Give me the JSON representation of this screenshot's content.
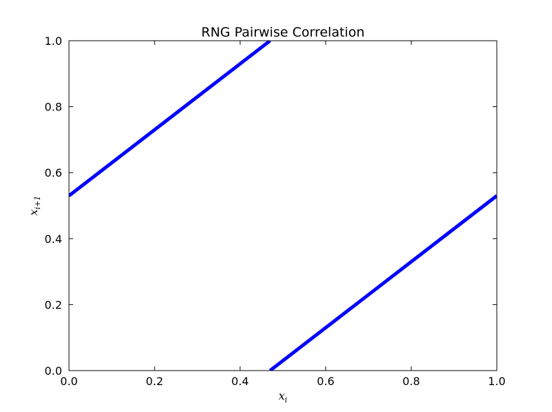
{
  "chart_data": {
    "type": "scatter",
    "title": "RNG Pairwise Correlation",
    "xlabel": "x_i",
    "ylabel": "x_{i+1}",
    "xlim": [
      0.0,
      1.0
    ],
    "ylim": [
      0.0,
      1.0
    ],
    "xticks": [
      "0.0",
      "0.2",
      "0.4",
      "0.6",
      "0.8",
      "1.0"
    ],
    "yticks": [
      "0.0",
      "0.2",
      "0.4",
      "0.6",
      "0.8",
      "1.0"
    ],
    "grid": false,
    "series": [
      {
        "x": [
          0.0,
          0.47
        ],
        "y": [
          0.53,
          1.0
        ],
        "color": "#0000ff"
      },
      {
        "x": [
          0.47,
          1.0
        ],
        "y": [
          0.0,
          0.53
        ],
        "color": "#0000ff"
      }
    ]
  }
}
